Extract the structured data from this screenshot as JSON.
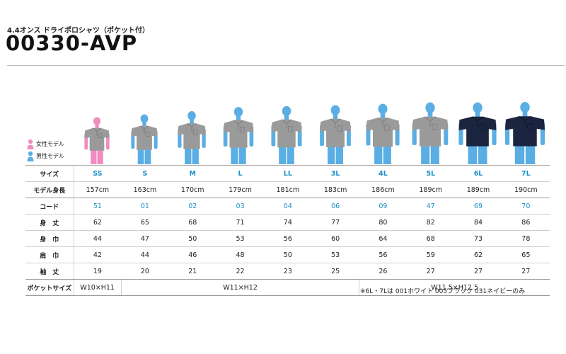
{
  "header": {
    "subtitle": "4.4オンス ドライポロシャツ（ポケット付）",
    "model_no": "00330-AVP"
  },
  "legend": {
    "female": "女性モデル",
    "male": "男性モデル"
  },
  "colors": {
    "female_icon": "#f08cbf",
    "male_icon": "#5aaee3",
    "gray_shirt": "#9a9a9a",
    "navy_shirt": "#1c2540",
    "accent_text": "#1a8fc8"
  },
  "table": {
    "row_labels": {
      "size": "サイズ",
      "model_height": "モデル身長",
      "code": "コード",
      "length": "身　丈",
      "width": "身　巾",
      "shoulder": "肩　巾",
      "sleeve": "袖　丈",
      "pocket": "ポケットサイズ"
    },
    "sizes": [
      "SS",
      "S",
      "M",
      "L",
      "LL",
      "3L",
      "4L",
      "5L",
      "6L",
      "7L"
    ],
    "model_heights": [
      "157cm",
      "163cm",
      "170cm",
      "179cm",
      "181cm",
      "183cm",
      "186cm",
      "189cm",
      "189cm",
      "190cm"
    ],
    "codes": [
      "51",
      "01",
      "02",
      "03",
      "04",
      "06",
      "09",
      "47",
      "69",
      "70"
    ],
    "length": [
      "62",
      "65",
      "68",
      "71",
      "74",
      "77",
      "80",
      "82",
      "84",
      "86"
    ],
    "width": [
      "44",
      "47",
      "50",
      "53",
      "56",
      "60",
      "64",
      "68",
      "73",
      "78"
    ],
    "shoulder": [
      "42",
      "44",
      "46",
      "48",
      "50",
      "53",
      "56",
      "59",
      "62",
      "65"
    ],
    "sleeve": [
      "19",
      "20",
      "21",
      "22",
      "23",
      "25",
      "26",
      "27",
      "27",
      "27"
    ],
    "pocket": [
      "W10×H11",
      "W11×H12",
      "W11.5×H12.5"
    ]
  },
  "figures": [
    {
      "size": "SS",
      "gender": "female",
      "shirt": "gray",
      "height": 157
    },
    {
      "size": "S",
      "gender": "male",
      "shirt": "gray",
      "height": 163
    },
    {
      "size": "M",
      "gender": "male",
      "shirt": "gray",
      "height": 170
    },
    {
      "size": "L",
      "gender": "male",
      "shirt": "gray",
      "height": 179
    },
    {
      "size": "LL",
      "gender": "male",
      "shirt": "gray",
      "height": 181
    },
    {
      "size": "3L",
      "gender": "male",
      "shirt": "gray",
      "height": 183
    },
    {
      "size": "4L",
      "gender": "male",
      "shirt": "gray",
      "height": 186
    },
    {
      "size": "5L",
      "gender": "male",
      "shirt": "gray",
      "height": 189
    },
    {
      "size": "6L",
      "gender": "male",
      "shirt": "navy",
      "height": 189
    },
    {
      "size": "7L",
      "gender": "male",
      "shirt": "navy",
      "height": 190
    }
  ],
  "note": "※6L・7Lは 001ホワイト 005ブラック 031ネイビーのみ"
}
